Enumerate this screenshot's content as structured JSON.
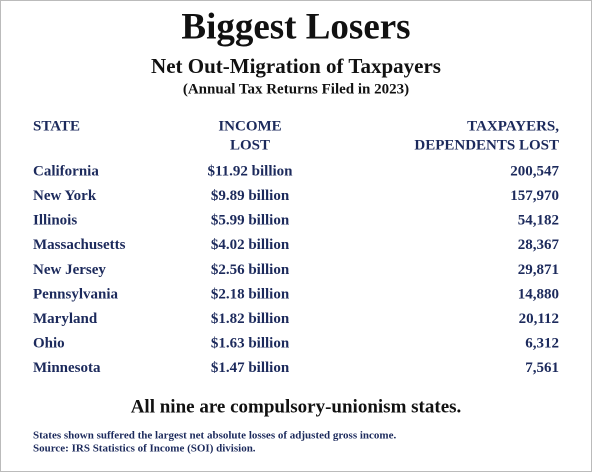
{
  "header": {
    "title": "Biggest Losers",
    "subtitle": "Net Out-Migration of Taxpayers",
    "note": "(Annual Tax Returns Filed in 2023)"
  },
  "table": {
    "columns": [
      {
        "lines": [
          "STATE"
        ]
      },
      {
        "lines": [
          "INCOME",
          "LOST"
        ]
      },
      {
        "lines": [
          "TAXPAYERS,",
          "DEPENDENTS LOST"
        ]
      }
    ],
    "rows": [
      [
        "California",
        "$11.92 billion",
        "200,547"
      ],
      [
        "New York",
        "$9.89 billion",
        "157,970"
      ],
      [
        "Illinois",
        "$5.99 billion",
        "54,182"
      ],
      [
        "Massachusetts",
        "$4.02 billion",
        "28,367"
      ],
      [
        "New Jersey",
        "$2.56 billion",
        "29,871"
      ],
      [
        "Pennsylvania",
        "$2.18 billion",
        "14,880"
      ],
      [
        "Maryland",
        "$1.82 billion",
        "20,112"
      ],
      [
        "Ohio",
        "$1.63 billion",
        "6,312"
      ],
      [
        "Minnesota",
        "$1.47 billion",
        "7,561"
      ]
    ]
  },
  "statement": "All nine are compulsory-unionism states.",
  "footnotes": [
    "States shown suffered the largest net absolute losses of adjusted gross income.",
    "Source: IRS Statistics of Income (SOI) division."
  ]
}
